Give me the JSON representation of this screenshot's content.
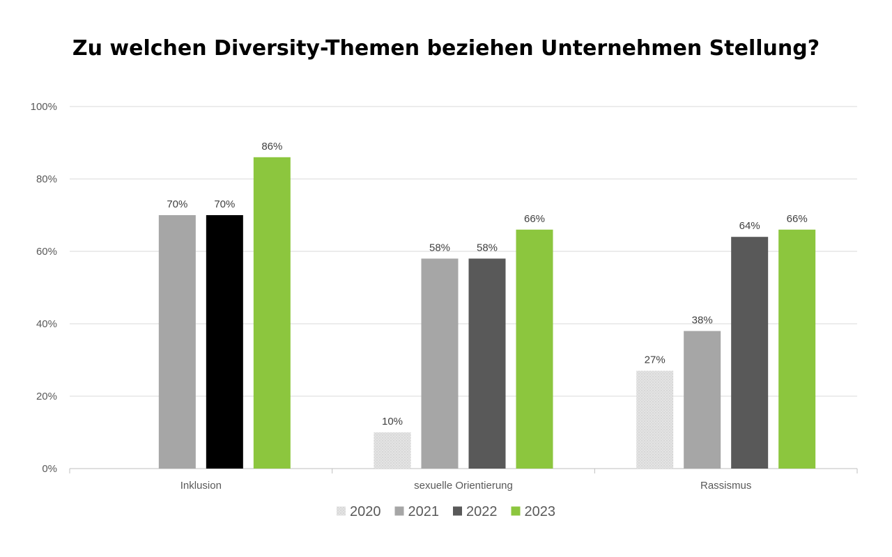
{
  "chart_data": {
    "type": "bar",
    "title": "Zu welchen Diversity-Themen beziehen Unternehmen Stellung?",
    "categories": [
      "Inklusion",
      "sexuelle Orientierung",
      "Rassismus"
    ],
    "series": [
      {
        "name": "2020",
        "color": "#dcdcdc",
        "pattern": "dotted",
        "values": [
          null,
          10,
          27
        ]
      },
      {
        "name": "2021",
        "color": "#a6a6a6",
        "values": [
          70,
          58,
          38
        ]
      },
      {
        "name": "2022",
        "color": "#595959",
        "values": [
          70,
          58,
          64
        ]
      },
      {
        "name": "2023",
        "color": "#8cc63e",
        "values": [
          86,
          66,
          66
        ]
      }
    ],
    "bar_color_overrides": [
      {
        "series": "2022",
        "category": "Inklusion",
        "color": "#000000"
      }
    ],
    "data_labels": [
      [
        "",
        "10%",
        "27%"
      ],
      [
        "70%",
        "58%",
        "38%"
      ],
      [
        "70%",
        "58%",
        "64%"
      ],
      [
        "86%",
        "66%",
        "66%"
      ]
    ],
    "yticks": [
      "0%",
      "20%",
      "40%",
      "60%",
      "80%",
      "100%"
    ],
    "ylim": [
      0,
      100
    ],
    "grid": true,
    "legend_position": "bottom",
    "xlabel": "",
    "ylabel": ""
  }
}
